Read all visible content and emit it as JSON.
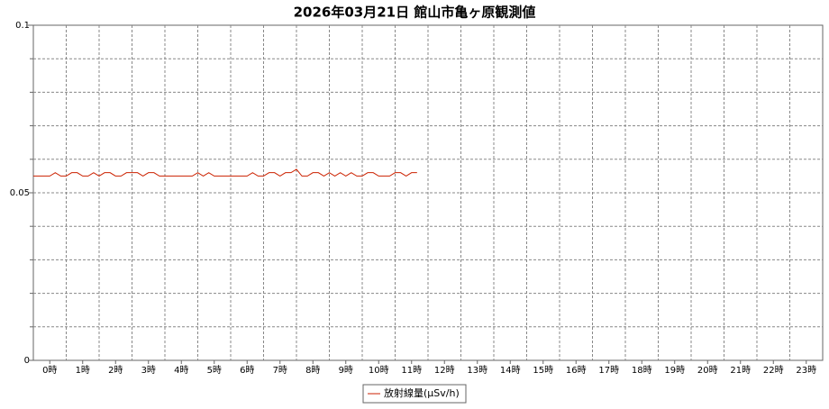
{
  "chart_data": {
    "type": "line",
    "title": "2026年03月21日 館山市亀ヶ原観測値",
    "x": [
      0,
      10,
      20,
      30,
      40,
      50,
      60,
      70,
      80,
      90,
      100,
      110,
      120,
      130,
      140,
      150,
      160,
      170,
      180,
      190,
      200,
      210,
      220,
      230,
      240,
      250,
      260,
      270,
      280,
      290,
      300,
      310,
      320,
      330,
      340,
      350,
      360,
      370,
      380,
      390,
      400,
      410,
      420,
      430,
      440,
      450,
      460,
      470,
      480,
      490,
      500,
      510,
      520,
      530,
      540,
      550,
      560,
      570,
      580,
      590,
      600,
      610,
      620,
      630,
      640,
      650,
      660,
      670,
      680,
      690,
      700
    ],
    "series": [
      {
        "name": "放射線量(μSv/h)",
        "color": "#cc2200",
        "values": [
          0.055,
          0.055,
          0.055,
          0.055,
          0.056,
          0.055,
          0.055,
          0.056,
          0.056,
          0.055,
          0.055,
          0.056,
          0.055,
          0.056,
          0.056,
          0.055,
          0.055,
          0.056,
          0.056,
          0.056,
          0.055,
          0.056,
          0.056,
          0.055,
          0.055,
          0.055,
          0.055,
          0.055,
          0.055,
          0.055,
          0.056,
          0.055,
          0.056,
          0.055,
          0.055,
          0.055,
          0.055,
          0.055,
          0.055,
          0.055,
          0.056,
          0.055,
          0.055,
          0.056,
          0.056,
          0.055,
          0.056,
          0.056,
          0.057,
          0.055,
          0.055,
          0.056,
          0.056,
          0.055,
          0.056,
          0.055,
          0.056,
          0.055,
          0.056,
          0.055,
          0.055,
          0.056,
          0.056,
          0.055,
          0.055,
          0.055,
          0.056,
          0.056,
          0.055,
          0.056,
          0.056
        ]
      }
    ],
    "xlim": [
      0,
      1440
    ],
    "xticks": [
      {
        "value": 30,
        "label": "0時"
      },
      {
        "value": 90,
        "label": "1時"
      },
      {
        "value": 150,
        "label": "2時"
      },
      {
        "value": 210,
        "label": "3時"
      },
      {
        "value": 270,
        "label": "4時"
      },
      {
        "value": 330,
        "label": "5時"
      },
      {
        "value": 390,
        "label": "6時"
      },
      {
        "value": 450,
        "label": "7時"
      },
      {
        "value": 510,
        "label": "8時"
      },
      {
        "value": 570,
        "label": "9時"
      },
      {
        "value": 630,
        "label": "10時"
      },
      {
        "value": 690,
        "label": "11時"
      },
      {
        "value": 750,
        "label": "12時"
      },
      {
        "value": 810,
        "label": "13時"
      },
      {
        "value": 870,
        "label": "14時"
      },
      {
        "value": 930,
        "label": "15時"
      },
      {
        "value": 990,
        "label": "16時"
      },
      {
        "value": 1050,
        "label": "17時"
      },
      {
        "value": 1110,
        "label": "18時"
      },
      {
        "value": 1170,
        "label": "19時"
      },
      {
        "value": 1230,
        "label": "20時"
      },
      {
        "value": 1290,
        "label": "21時"
      },
      {
        "value": 1350,
        "label": "22時"
      },
      {
        "value": 1410,
        "label": "23時"
      }
    ],
    "ylim": [
      0,
      0.1
    ],
    "yticks": [
      0,
      0.05,
      0.1
    ],
    "ygrid_lines": [
      0.01,
      0.02,
      0.03,
      0.04,
      0.05,
      0.06,
      0.07,
      0.08,
      0.09
    ],
    "grid": true,
    "legend": "bottom"
  }
}
